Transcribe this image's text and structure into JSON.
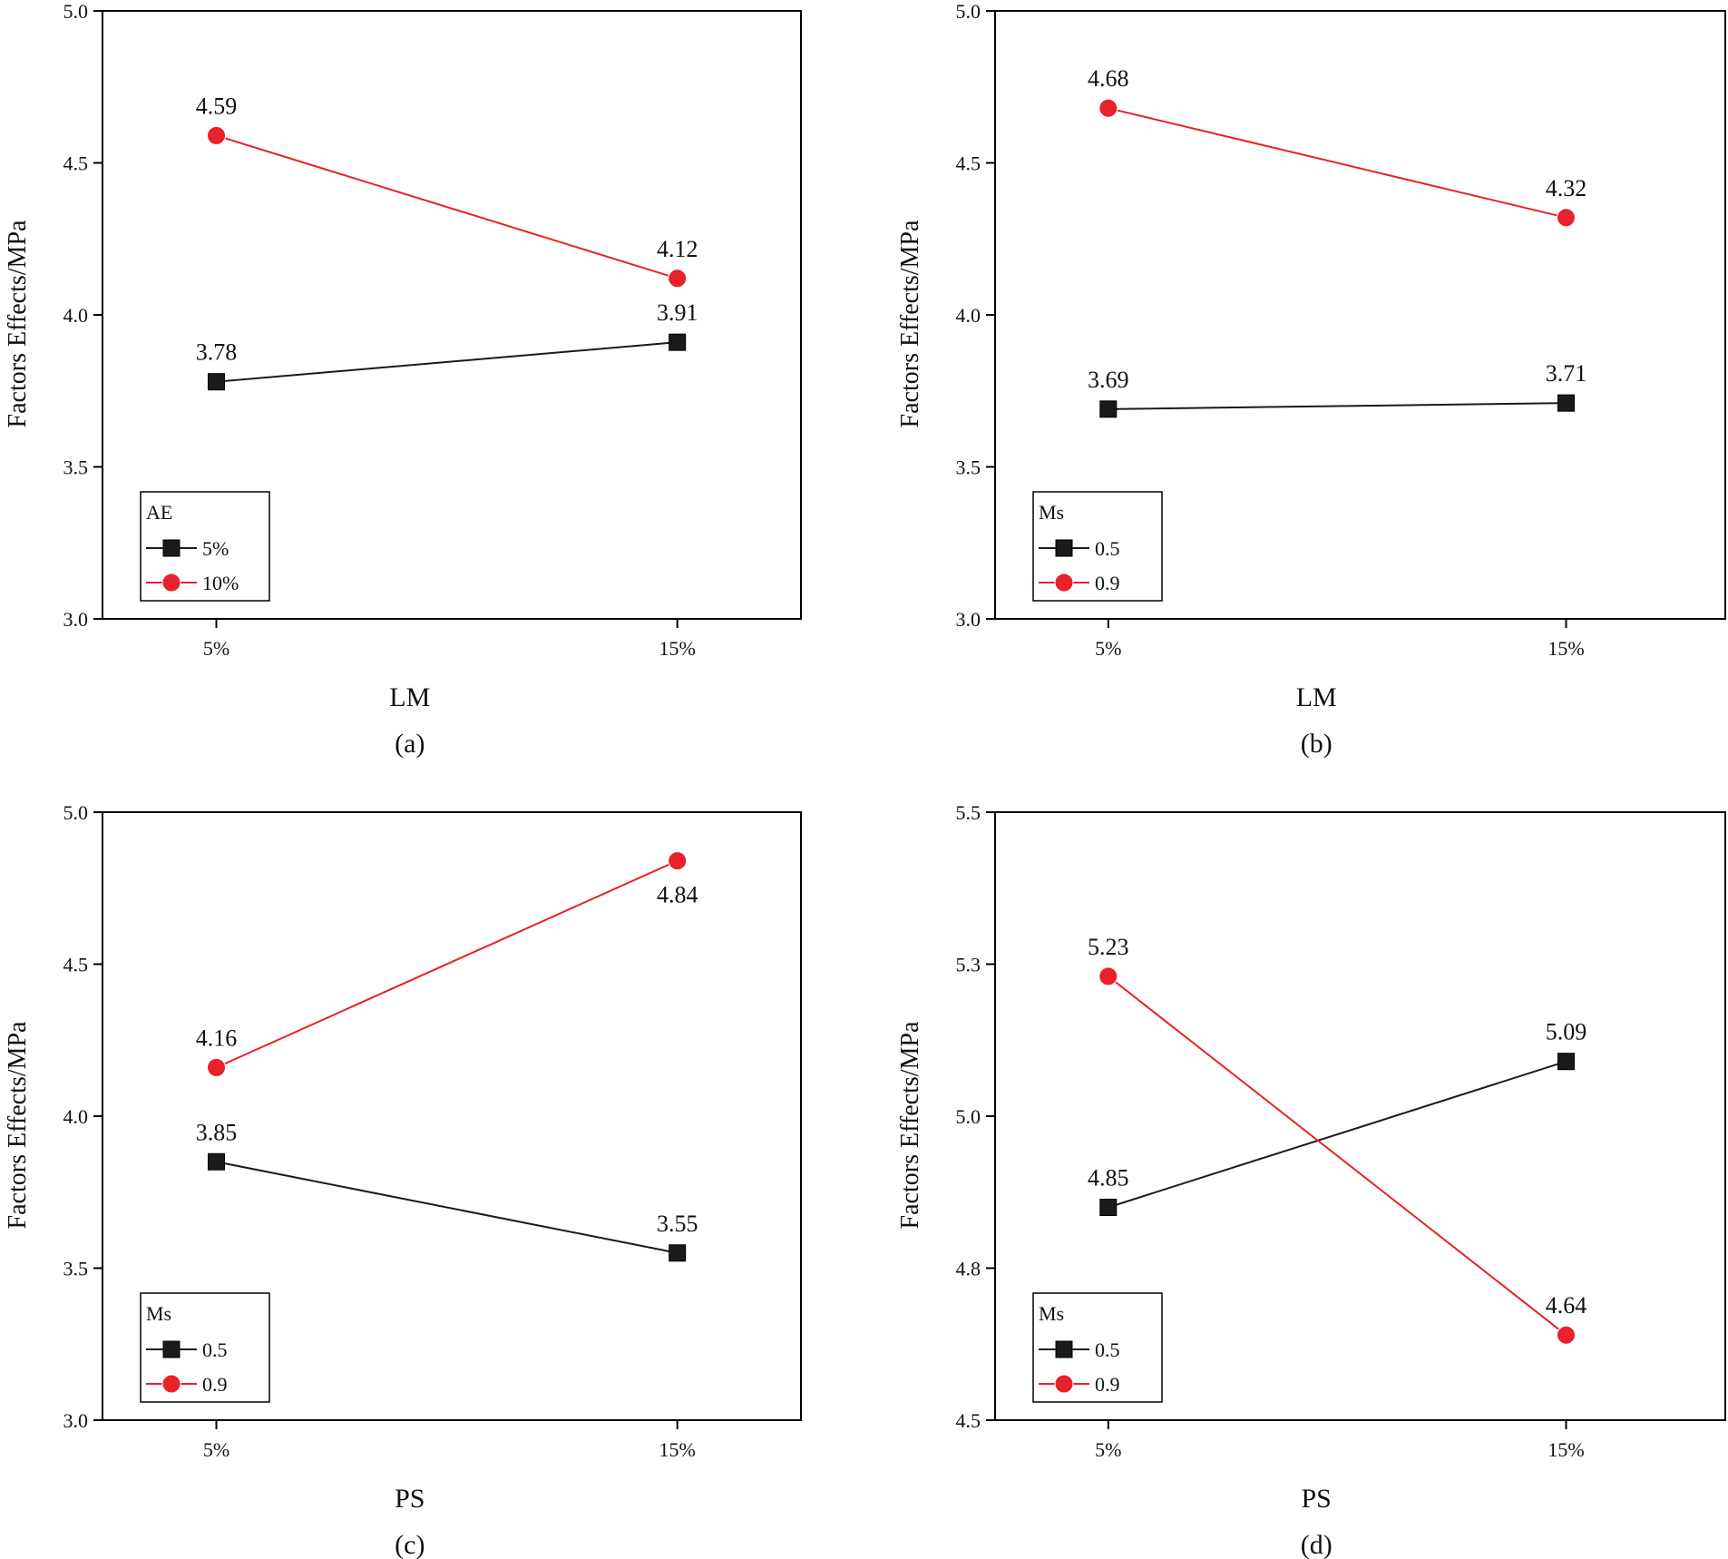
{
  "colors": {
    "series_black": "#1a1a1a",
    "series_red": "#e8212a",
    "axis": "#000000"
  },
  "chart_data": [
    {
      "type": "line",
      "caption": "(a)",
      "xlabel": "LM",
      "ylabel": "Factors Effects/MPa",
      "categories": [
        "5%",
        "15%"
      ],
      "ylim": [
        3.0,
        5.0
      ],
      "yticks": [
        "3.0",
        "3.5",
        "4.0",
        "4.5",
        "5.0"
      ],
      "ytick_values": [
        3.0,
        3.5,
        4.0,
        4.5,
        5.0
      ],
      "legend": {
        "title": "AE",
        "position": "bottom-left"
      },
      "series": [
        {
          "name": "5%",
          "marker": "square",
          "color": "#1a1a1a",
          "values": [
            3.78,
            3.91
          ],
          "labels": [
            "3.78",
            "3.91"
          ],
          "label_pos": [
            "above",
            "above"
          ]
        },
        {
          "name": "10%",
          "marker": "circle",
          "color": "#e8212a",
          "values": [
            4.59,
            4.12
          ],
          "labels": [
            "4.59",
            "4.12"
          ],
          "label_pos": [
            "above",
            "above"
          ]
        }
      ]
    },
    {
      "type": "line",
      "caption": "(b)",
      "xlabel": "LM",
      "ylabel": "Factors Effects/MPa",
      "categories": [
        "5%",
        "15%"
      ],
      "ylim": [
        3.0,
        5.0
      ],
      "yticks": [
        "3.0",
        "3.5",
        "4.0",
        "4.5",
        "5.0"
      ],
      "ytick_values": [
        3.0,
        3.5,
        4.0,
        4.5,
        5.0
      ],
      "legend": {
        "title": "Ms",
        "position": "bottom-left"
      },
      "series": [
        {
          "name": "0.5",
          "marker": "square",
          "color": "#1a1a1a",
          "values": [
            3.69,
            3.71
          ],
          "labels": [
            "3.69",
            "3.71"
          ],
          "label_pos": [
            "above",
            "above"
          ]
        },
        {
          "name": "0.9",
          "marker": "circle",
          "color": "#e8212a",
          "values": [
            4.68,
            4.32
          ],
          "labels": [
            "4.68",
            "4.32"
          ],
          "label_pos": [
            "above",
            "above"
          ]
        }
      ]
    },
    {
      "type": "line",
      "caption": "(c)",
      "xlabel": "PS",
      "ylabel": "Factors Effects/MPa",
      "categories": [
        "5%",
        "15%"
      ],
      "ylim": [
        3.0,
        5.0
      ],
      "yticks": [
        "3.0",
        "3.5",
        "4.0",
        "4.5",
        "5.0"
      ],
      "ytick_values": [
        3.0,
        3.5,
        4.0,
        4.5,
        5.0
      ],
      "legend": {
        "title": "Ms",
        "position": "bottom-left"
      },
      "series": [
        {
          "name": "0.5",
          "marker": "square",
          "color": "#1a1a1a",
          "values": [
            3.85,
            3.55
          ],
          "labels": [
            "3.85",
            "3.55"
          ],
          "label_pos": [
            "above",
            "above"
          ]
        },
        {
          "name": "0.9",
          "marker": "circle",
          "color": "#e8212a",
          "values": [
            4.16,
            4.84
          ],
          "labels": [
            "4.16",
            "4.84"
          ],
          "label_pos": [
            "above",
            "below"
          ]
        }
      ]
    },
    {
      "type": "line",
      "caption": "(d)",
      "xlabel": "PS",
      "ylabel": "Factors Effects/MPa",
      "categories": [
        "5%",
        "15%"
      ],
      "ylim": [
        4.5,
        5.5
      ],
      "yticks": [
        "4.5",
        "4.8",
        "5.0",
        "5.3",
        "5.5"
      ],
      "ytick_values": [
        4.5,
        4.75,
        5.0,
        5.25,
        5.5
      ],
      "legend": {
        "title": "Ms",
        "position": "bottom-left"
      },
      "series": [
        {
          "name": "0.5",
          "marker": "square",
          "color": "#1a1a1a",
          "values": [
            4.85,
            5.09
          ],
          "labels": [
            "4.85",
            "5.09"
          ],
          "label_pos": [
            "above",
            "above"
          ]
        },
        {
          "name": "0.9",
          "marker": "circle",
          "color": "#e8212a",
          "values": [
            5.23,
            4.64
          ],
          "labels": [
            "5.23",
            "4.64"
          ],
          "label_pos": [
            "above",
            "above"
          ]
        }
      ]
    }
  ]
}
